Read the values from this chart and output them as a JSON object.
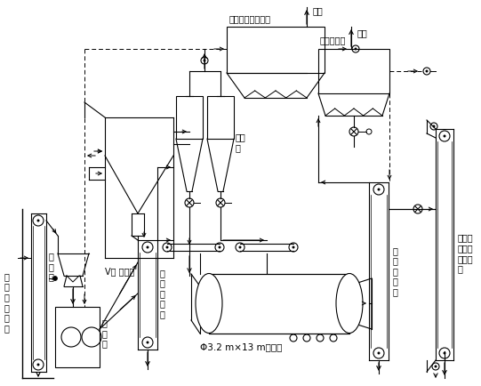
{
  "bg_color": "#ffffff",
  "labels": {
    "roller_press_dust": "辊压机系统收尘器",
    "exhaust1": "排空",
    "cyclone": "旋风\n筒",
    "V_separator": "V型 选粉机",
    "weigher": "称\n重\n仓",
    "roller_press": "辊\n压\n机",
    "cake_elevator": "料\n饼\n提\n升\n机",
    "from_cement": "来\n自\n水\n泥\n配\n料",
    "ball_mill": "Φ3.2 m×13 m球磨机",
    "tail_dust": "磨尾收尘器",
    "exhaust2": "排空",
    "discharge_elevator": "出\n磨\n提\n升\n机",
    "to_cement": "至水泥\n储存与\n散装系\n统"
  }
}
